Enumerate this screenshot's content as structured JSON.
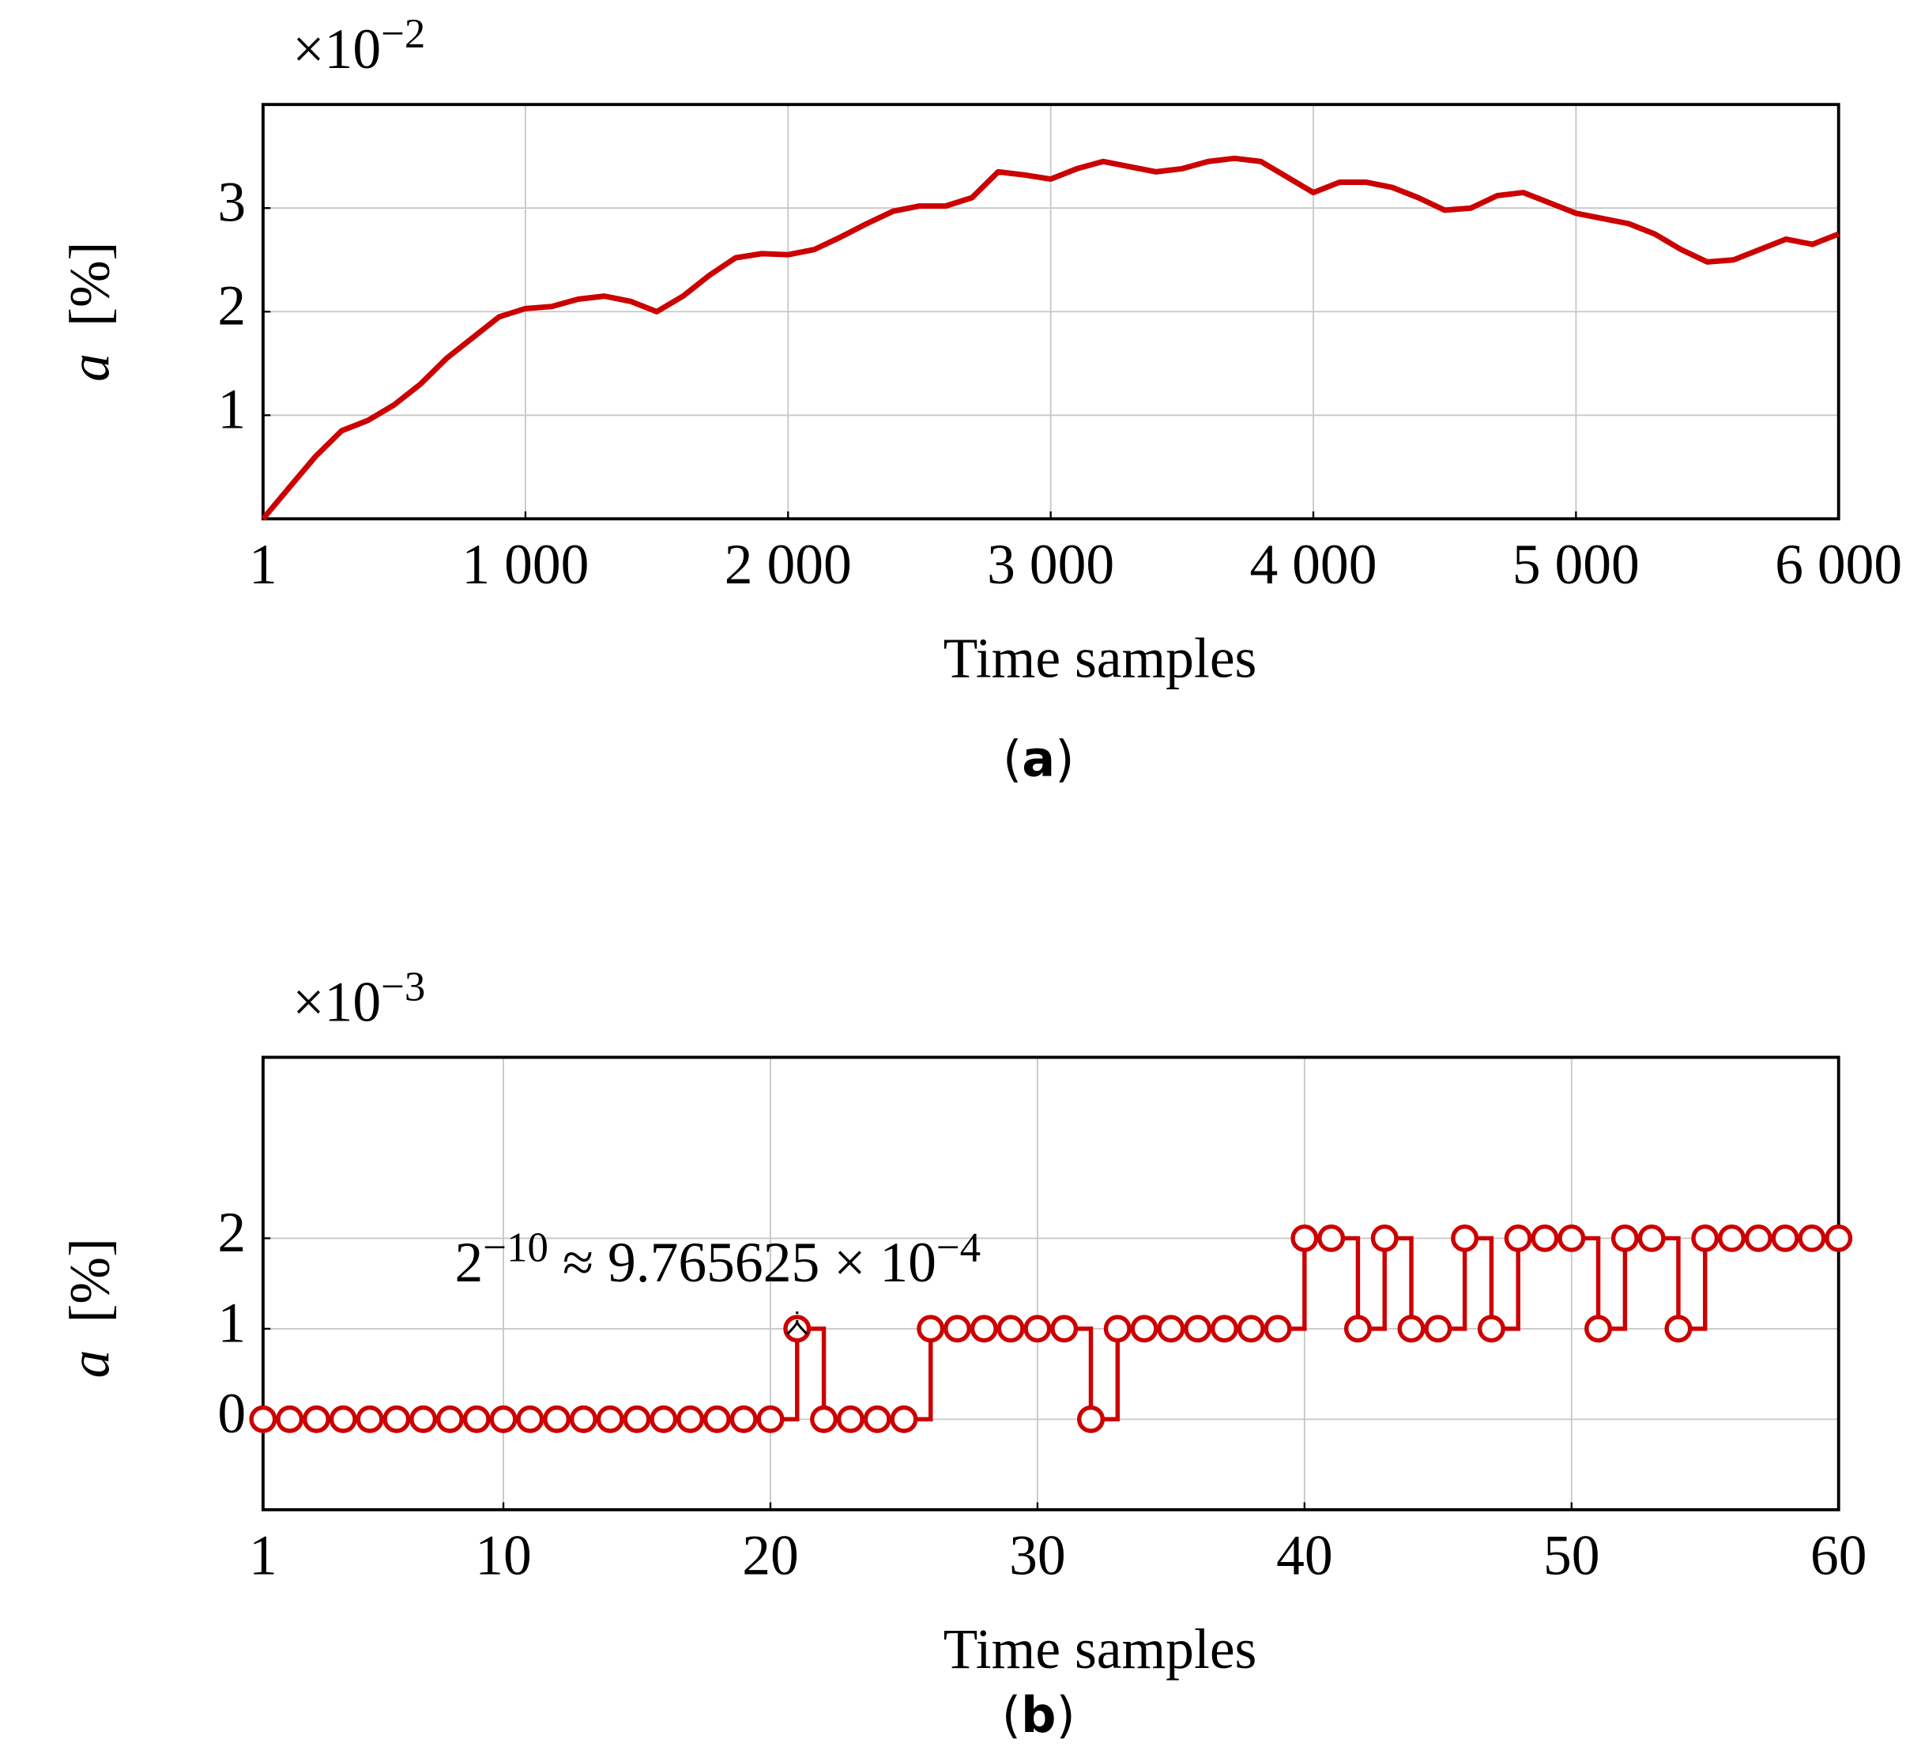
{
  "chart_data": [
    {
      "type": "line",
      "offset_label": [
        "×10",
        "−2"
      ],
      "ylabel": [
        "a",
        "[%]"
      ],
      "xlabel": "Time samples",
      "caption": [
        "(",
        "a",
        ")"
      ],
      "x": [
        1,
        100,
        200,
        300,
        400,
        500,
        600,
        700,
        800,
        900,
        1000,
        1100,
        1200,
        1300,
        1400,
        1500,
        1600,
        1700,
        1800,
        1900,
        2000,
        2100,
        2200,
        2300,
        2400,
        2500,
        2600,
        2700,
        2800,
        2900,
        3000,
        3100,
        3200,
        3300,
        3400,
        3500,
        3600,
        3700,
        3800,
        3900,
        4000,
        4100,
        4200,
        4300,
        4400,
        4500,
        4600,
        4700,
        4800,
        4900,
        5000,
        5100,
        5200,
        5300,
        5400,
        5500,
        5600,
        5700,
        5800,
        5900,
        6000
      ],
      "series": [
        {
          "color": "#cc0000",
          "values": [
            0,
            0.3,
            0.6,
            0.85,
            0.95,
            1.1,
            1.3,
            1.55,
            1.75,
            1.95,
            2.03,
            2.05,
            2.12,
            2.15,
            2.1,
            2.0,
            2.15,
            2.35,
            2.52,
            2.56,
            2.55,
            2.6,
            2.72,
            2.85,
            2.97,
            3.02,
            3.02,
            3.1,
            3.35,
            3.32,
            3.28,
            3.38,
            3.45,
            3.4,
            3.35,
            3.38,
            3.45,
            3.48,
            3.45,
            3.3,
            3.15,
            3.25,
            3.25,
            3.2,
            3.1,
            2.98,
            3.0,
            3.12,
            3.15,
            3.05,
            2.95,
            2.9,
            2.85,
            2.75,
            2.6,
            2.48,
            2.5,
            2.6,
            2.7,
            2.65,
            2.75
          ]
        }
      ],
      "xlim": [
        1,
        6000
      ],
      "xticks": [
        1,
        {
          "value": 1000,
          "label": "1 000"
        },
        {
          "value": 2000,
          "label": "2 000"
        },
        {
          "value": 3000,
          "label": "3 000"
        },
        {
          "value": 4000,
          "label": "4 000"
        },
        {
          "value": 5000,
          "label": "5 000"
        },
        {
          "value": 6000,
          "label": "6 000"
        }
      ],
      "ylim": [
        0,
        4
      ],
      "yticks": [
        1,
        2,
        3
      ],
      "grid": true
    },
    {
      "type": "step",
      "offset_label": [
        "×10",
        "−3"
      ],
      "ylabel": [
        "a",
        "[%]"
      ],
      "xlabel": "Time samples",
      "caption": [
        "(",
        "b",
        ")"
      ],
      "annotation": [
        "2",
        "−10",
        " ≈ 9.765625 × 10",
        "−4"
      ],
      "x": [
        1,
        2,
        3,
        4,
        5,
        6,
        7,
        8,
        9,
        10,
        11,
        12,
        13,
        14,
        15,
        16,
        17,
        18,
        19,
        20,
        21,
        22,
        23,
        24,
        25,
        26,
        27,
        28,
        29,
        30,
        31,
        32,
        33,
        34,
        35,
        36,
        37,
        38,
        39,
        40,
        41,
        42,
        43,
        44,
        45,
        46,
        47,
        48,
        49,
        50,
        51,
        52,
        53,
        54,
        55,
        56,
        57,
        58,
        59,
        60
      ],
      "series": [
        {
          "color": "#cc0000",
          "values": [
            0,
            0,
            0,
            0,
            0,
            0,
            0,
            0,
            0,
            0,
            0,
            0,
            0,
            0,
            0,
            0,
            0,
            0,
            0,
            0,
            1,
            0,
            0,
            0,
            0,
            1,
            1,
            1,
            1,
            1,
            1,
            0,
            1,
            1,
            1,
            1,
            1,
            1,
            1,
            2,
            2,
            1,
            2,
            1,
            1,
            2,
            1,
            2,
            2,
            2,
            1,
            2,
            2,
            1,
            2,
            2,
            2,
            2,
            2,
            2
          ]
        }
      ],
      "xlim": [
        1,
        60
      ],
      "xticks": [
        1,
        10,
        20,
        30,
        40,
        50,
        60
      ],
      "ylim": [
        -1,
        4
      ],
      "yticks": [
        0,
        1,
        2
      ],
      "grid": true
    }
  ]
}
